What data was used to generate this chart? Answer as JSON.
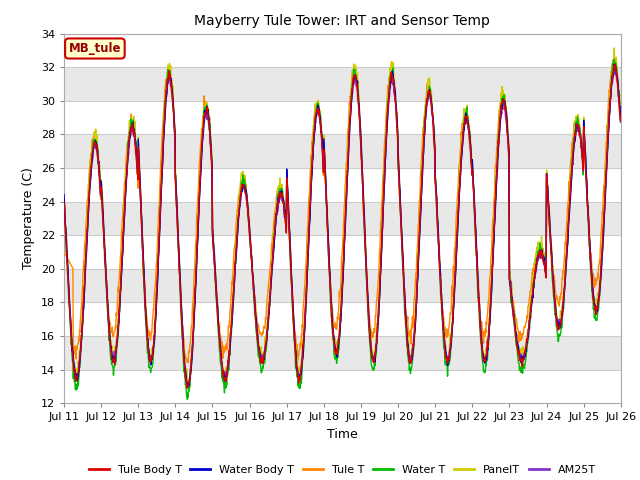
{
  "title": "Mayberry Tule Tower: IRT and Sensor Temp",
  "xlabel": "Time",
  "ylabel": "Temperature (C)",
  "ylim": [
    12,
    34
  ],
  "yticks": [
    12,
    14,
    16,
    18,
    20,
    22,
    24,
    26,
    28,
    30,
    32,
    34
  ],
  "xlim_start": 0,
  "xlim_end": 360,
  "xtick_positions": [
    0,
    24,
    48,
    72,
    96,
    120,
    144,
    168,
    192,
    216,
    240,
    264,
    288,
    312,
    336,
    360
  ],
  "xtick_labels": [
    "Jul 11",
    "Jul 12",
    "Jul 13",
    "Jul 14",
    "Jul 15",
    "Jul 16",
    "Jul 17",
    "Jul 18",
    "Jul 19",
    "Jul 20",
    "Jul 21",
    "Jul 22",
    "Jul 23",
    "Jul 24",
    "Jul 25",
    "Jul 26"
  ],
  "colors": {
    "Tule Body T": "#dd0000",
    "Water Body T": "#0000cc",
    "Tule T": "#ff8800",
    "Water T": "#00bb00",
    "PanelT": "#cccc00",
    "AM25T": "#8833cc"
  },
  "legend_label": "MB_tule",
  "bg_color": "#ffffff",
  "plot_bg": "#e8e8e8",
  "band_color": "#e0e0e0",
  "grid_color": "#ffffff",
  "mb_box_bg": "#ffffcc",
  "mb_box_edge": "#cc0000",
  "mb_text_color": "#990000",
  "day_peaks": [
    27.5,
    28.5,
    31.5,
    29.5,
    25.0,
    24.5,
    29.5,
    31.5,
    31.5,
    30.5,
    29.0,
    30.0,
    21.0,
    28.5,
    32.0
  ],
  "day_mins": [
    13.5,
    14.5,
    14.5,
    13.0,
    13.5,
    14.5,
    13.5,
    15.0,
    14.5,
    14.5,
    14.5,
    14.5,
    14.5,
    16.5,
    17.5
  ]
}
